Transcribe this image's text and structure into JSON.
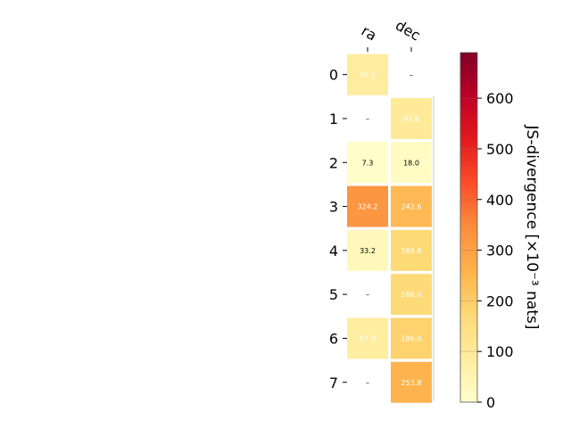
{
  "chart_data": {
    "type": "heatmap",
    "columns": [
      "ra",
      "dec"
    ],
    "rows": [
      "0",
      "1",
      "2",
      "3",
      "4",
      "5",
      "6",
      "7"
    ],
    "values": [
      [
        91.2,
        null
      ],
      [
        null,
        97.6
      ],
      [
        7.3,
        18.0
      ],
      [
        324.2,
        242.6
      ],
      [
        33.2,
        169.8
      ],
      [
        null,
        168.0
      ],
      [
        87.0,
        186.0
      ],
      [
        null,
        253.8
      ]
    ],
    "cell_labels": [
      [
        "91.2",
        "–"
      ],
      [
        "–",
        "97.6"
      ],
      [
        "7.3",
        "18.0"
      ],
      [
        "324.2",
        "242.6"
      ],
      [
        "33.2",
        "169.8"
      ],
      [
        "–",
        "168.0"
      ],
      [
        "87.0",
        "186.0"
      ],
      [
        "–",
        "253.8"
      ]
    ],
    "colormap": "YlOrRd",
    "colorbar": {
      "label": "JS-divergence [×10⁻³ nats]",
      "range": [
        0,
        690
      ],
      "ticks": [
        0,
        100,
        200,
        300,
        400,
        500,
        600
      ],
      "tick_labels": [
        "0",
        "100",
        "200",
        "300",
        "400",
        "500",
        "600"
      ]
    }
  }
}
